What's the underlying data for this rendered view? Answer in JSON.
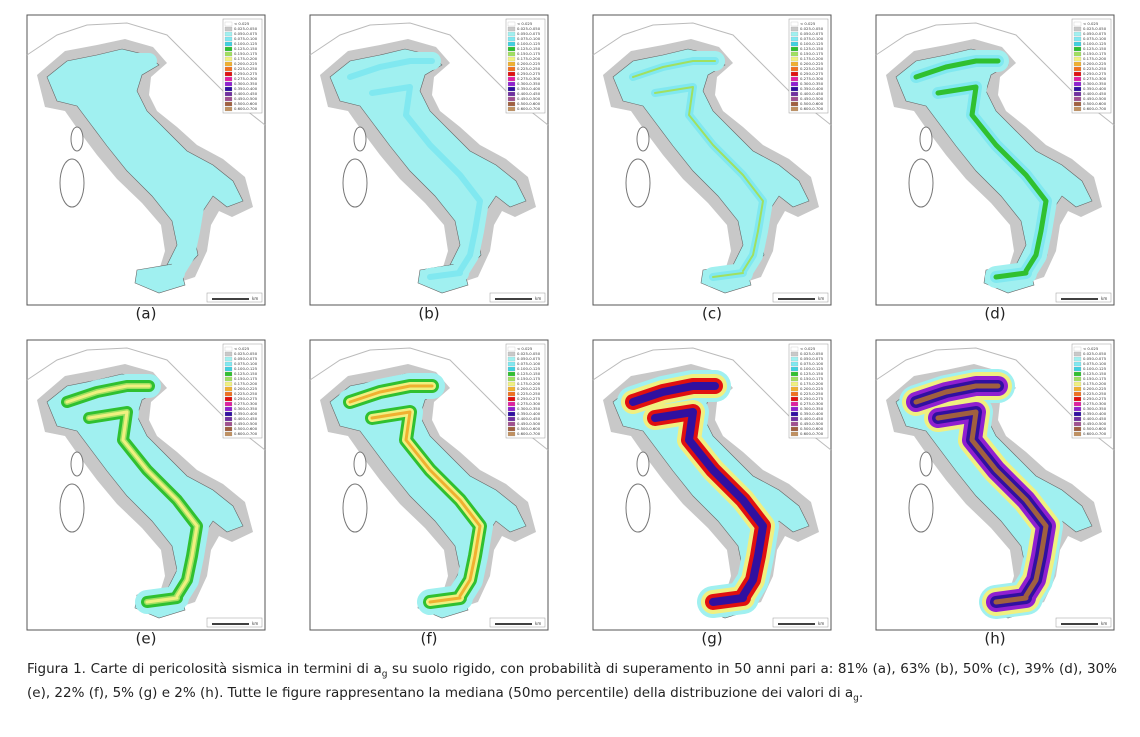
{
  "panels": [
    {
      "label": "(a)"
    },
    {
      "label": "(b)"
    },
    {
      "label": "(c)"
    },
    {
      "label": "(d)"
    },
    {
      "label": "(e)"
    },
    {
      "label": "(f)"
    },
    {
      "label": "(g)"
    },
    {
      "label": "(h)"
    }
  ],
  "legend": [
    {
      "label": "< 0.025",
      "color": "#ffffff"
    },
    {
      "label": "0.025-0.050",
      "color": "#c8c8c8"
    },
    {
      "label": "0.050-0.075",
      "color": "#a0f0f0"
    },
    {
      "label": "0.075-0.100",
      "color": "#80e8f0"
    },
    {
      "label": "0.100-0.125",
      "color": "#40d0e0"
    },
    {
      "label": "0.125-0.150",
      "color": "#30c030"
    },
    {
      "label": "0.150-0.175",
      "color": "#a0e060"
    },
    {
      "label": "0.175-0.200",
      "color": "#f0f080"
    },
    {
      "label": "0.200-0.225",
      "color": "#f0b030"
    },
    {
      "label": "0.225-0.250",
      "color": "#f07020"
    },
    {
      "label": "0.250-0.275",
      "color": "#e01010"
    },
    {
      "label": "0.275-0.300",
      "color": "#e020a0"
    },
    {
      "label": "0.300-0.350",
      "color": "#9020d0"
    },
    {
      "label": "0.350-0.400",
      "color": "#3010a0"
    },
    {
      "label": "0.400-0.450",
      "color": "#7030a0"
    },
    {
      "label": "0.450-0.500",
      "color": "#a05090"
    },
    {
      "label": "0.500-0.600",
      "color": "#a06040"
    },
    {
      "label": "0.600-0.700",
      "color": "#c09060"
    }
  ],
  "scale_unit": "km",
  "caption": [
    "Figura 1. Carte di pericolosità sismica in termini di a",
    "g",
    " su suolo rigido, con probabilità di superamento in 50 anni pari a: 81% (a), 63% (b), 50% (c), 39% (d), 30% (e), 22% (f), 5% (g) e 2% (h). Tutte le figure rappresentano la mediana (50mo percentile) della distribuzione dei valori di a",
    "g",
    "."
  ]
}
